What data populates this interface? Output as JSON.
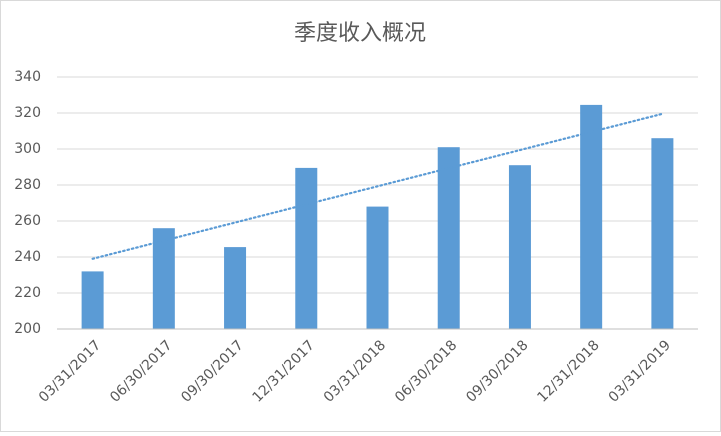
{
  "chart_data": {
    "type": "bar",
    "title": "季度收入概况",
    "categories": [
      "03/31/2017",
      "06/30/2017",
      "09/30/2017",
      "12/31/2017",
      "03/31/2018",
      "06/30/2018",
      "09/30/2018",
      "12/31/2018",
      "03/31/2019"
    ],
    "values": [
      232,
      256,
      245.5,
      289.5,
      268,
      301,
      291,
      324.5,
      306
    ],
    "color": "#5b9bd5",
    "ylim": [
      200,
      340
    ],
    "yticks": [
      200,
      220,
      240,
      260,
      280,
      300,
      320,
      340
    ],
    "grid": true,
    "trendline": {
      "kind": "linear",
      "color": "#5b9bd5",
      "style": "dotted"
    }
  }
}
